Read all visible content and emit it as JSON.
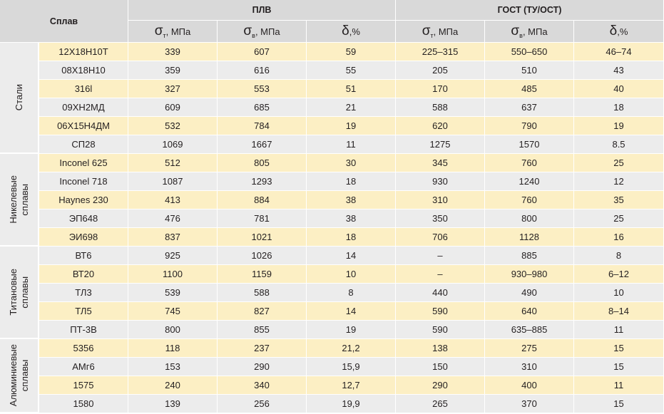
{
  "table": {
    "header": {
      "alloy": "Сплав",
      "groups": [
        "ПЛВ",
        "ГОСТ (ТУ/ОСТ)"
      ],
      "columns": [
        {
          "symbol": "σ",
          "sub": "т",
          "suffix": ", МПа"
        },
        {
          "symbol": "σ",
          "sub": "в",
          "suffix": ", МПа"
        },
        {
          "symbol": "δ",
          "suffix": ",%"
        },
        {
          "symbol": "σ",
          "sub": "т",
          "suffix": ", МПа"
        },
        {
          "symbol": "σ",
          "sub": "в",
          "suffix": ", МПа"
        },
        {
          "symbol": "δ",
          "suffix": ",%"
        }
      ]
    },
    "groups": [
      {
        "label_lines": [
          "Стали"
        ],
        "rows": [
          [
            "12Х18Н10Т",
            "339",
            "607",
            "59",
            "225–315",
            "550–650",
            "46–74"
          ],
          [
            "08Х18Н10",
            "359",
            "616",
            "55",
            "205",
            "510",
            "43"
          ],
          [
            "316l",
            "327",
            "553",
            "51",
            "170",
            "485",
            "40"
          ],
          [
            "09ХН2МД",
            "609",
            "685",
            "21",
            "588",
            "637",
            "18"
          ],
          [
            "06Х15Н4ДМ",
            "532",
            "784",
            "19",
            "620",
            "790",
            "19"
          ],
          [
            "СП28",
            "1069",
            "1667",
            "11",
            "1275",
            "1570",
            "8.5"
          ]
        ]
      },
      {
        "label_lines": [
          "Никелевые",
          "сплавы"
        ],
        "rows": [
          [
            "Inconel 625",
            "512",
            "805",
            "30",
            "345",
            "760",
            "25"
          ],
          [
            "Inconel 718",
            "1087",
            "1293",
            "18",
            "930",
            "1240",
            "12"
          ],
          [
            "Haynes 230",
            "413",
            "884",
            "38",
            "310",
            "760",
            "35"
          ],
          [
            "ЭП648",
            "476",
            "781",
            "38",
            "350",
            "800",
            "25"
          ],
          [
            "ЭИ698",
            "837",
            "1021",
            "18",
            "706",
            "1128",
            "16"
          ]
        ]
      },
      {
        "label_lines": [
          "Титановые",
          "сплавы"
        ],
        "rows": [
          [
            "ВТ6",
            "925",
            "1026",
            "14",
            "–",
            "885",
            "8"
          ],
          [
            "ВТ20",
            "1100",
            "1159",
            "10",
            "–",
            "930–980",
            "6–12"
          ],
          [
            "ТЛ3",
            "539",
            "588",
            "8",
            "440",
            "490",
            "10"
          ],
          [
            "ТЛ5",
            "745",
            "827",
            "14",
            "590",
            "640",
            "8–14"
          ],
          [
            "ПТ-3В",
            "800",
            "855",
            "19",
            "590",
            "635–885",
            "11"
          ]
        ]
      },
      {
        "label_lines": [
          "Алюминиевые",
          "сплавы"
        ],
        "rows": [
          [
            "5356",
            "118",
            "237",
            "21,2",
            "138",
            "275",
            "15"
          ],
          [
            "АМг6",
            "153",
            "290",
            "15,9",
            "150",
            "310",
            "15"
          ],
          [
            "1575",
            "240",
            "340",
            "12,7",
            "290",
            "400",
            "11"
          ],
          [
            "1580",
            "139",
            "256",
            "19,9",
            "265",
            "370",
            "15"
          ]
        ]
      }
    ]
  }
}
